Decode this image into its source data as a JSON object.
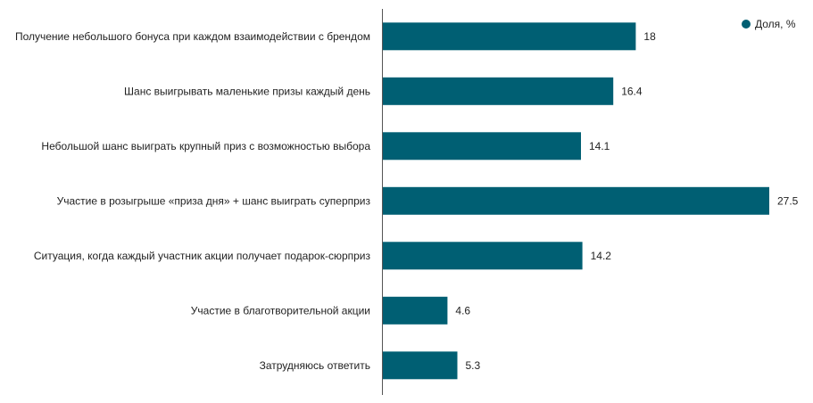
{
  "chart_data": {
    "type": "bar",
    "orientation": "horizontal",
    "categories": [
      "Получение небольшого бонуса при каждом взаимодействии с брендом",
      "Шанс выигрывать маленькие призы каждый день",
      "Небольшой шанс выиграть крупный приз с возможностью выбора",
      "Участие в розыгрыше «приза дня» + шанс выиграть суперприз",
      "Ситуация, когда каждый участник акции получает подарок-сюрприз",
      "Участие в благотворительной акции",
      "Затрудняюсь ответить"
    ],
    "series": [
      {
        "name": "Доля, %",
        "values": [
          18,
          16.4,
          14.1,
          27.5,
          14.2,
          4.6,
          5.3
        ],
        "color": "#005f73"
      }
    ],
    "value_labels": [
      "18",
      "16.4",
      "14.1",
      "27.5",
      "14.2",
      "4.6",
      "5.3"
    ],
    "xlim": [
      0,
      27.5
    ],
    "grid": false,
    "legend_position": "top-right",
    "axis_color": "#555555"
  }
}
